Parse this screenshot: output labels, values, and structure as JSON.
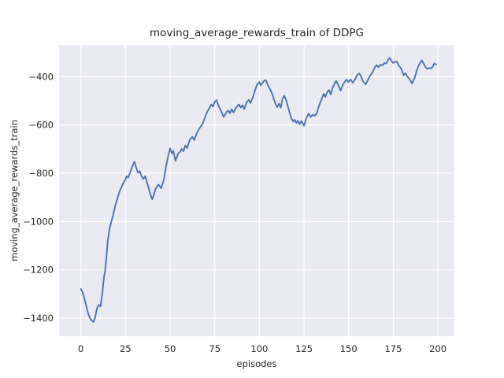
{
  "chart_data": {
    "type": "line",
    "title": "moving_average_rewards_train of DDPG",
    "xlabel": "episodes",
    "ylabel": "moving_average_rewards_train",
    "grid": true,
    "legend": "none",
    "plot_bg_color": "#eaeaf2",
    "grid_color": "#ffffff",
    "text_color": "#262626",
    "xlim": [
      -12.2,
      209.0
    ],
    "ylim": [
      -1475,
      -270
    ],
    "xticks": [
      0,
      25,
      50,
      75,
      100,
      125,
      150,
      175,
      200
    ],
    "xtick_labels": [
      "0",
      "25",
      "50",
      "75",
      "100",
      "125",
      "150",
      "175",
      "200"
    ],
    "yticks": [
      -400,
      -600,
      -800,
      -1000,
      -1200,
      -1400
    ],
    "ytick_labels": [
      "−400",
      "−600",
      "−800",
      "−1000",
      "−1200",
      "−1400"
    ],
    "series": [
      {
        "name": "moving_average_rewards_train",
        "color": "#4c72b0",
        "line_width": 1.9,
        "points": [
          [
            0,
            -1279
          ],
          [
            1,
            -1293
          ],
          [
            2,
            -1318
          ],
          [
            3,
            -1348
          ],
          [
            4,
            -1378
          ],
          [
            5,
            -1398
          ],
          [
            6,
            -1410
          ],
          [
            7,
            -1416
          ],
          [
            8,
            -1398
          ],
          [
            9,
            -1360
          ],
          [
            10,
            -1345
          ],
          [
            11,
            -1352
          ],
          [
            12,
            -1300
          ],
          [
            13,
            -1228
          ],
          [
            13.6,
            -1205
          ],
          [
            14.3,
            -1150
          ],
          [
            15,
            -1085
          ],
          [
            16,
            -1032
          ],
          [
            17,
            -1003
          ],
          [
            18,
            -976
          ],
          [
            19,
            -942
          ],
          [
            20,
            -916
          ],
          [
            21,
            -891
          ],
          [
            22,
            -870
          ],
          [
            23,
            -853
          ],
          [
            24,
            -838
          ],
          [
            25,
            -826
          ],
          [
            25.6,
            -812
          ],
          [
            26.5,
            -818
          ],
          [
            27.5,
            -799
          ],
          [
            28.5,
            -778
          ],
          [
            30,
            -752
          ],
          [
            31,
            -776
          ],
          [
            32,
            -798
          ],
          [
            33,
            -791
          ],
          [
            34,
            -812
          ],
          [
            35,
            -824
          ],
          [
            36,
            -812
          ],
          [
            37,
            -836
          ],
          [
            38,
            -862
          ],
          [
            39,
            -888
          ],
          [
            40,
            -908
          ],
          [
            41,
            -886
          ],
          [
            42,
            -862
          ],
          [
            43.5,
            -847
          ],
          [
            45,
            -862
          ],
          [
            46.5,
            -826
          ],
          [
            47.5,
            -781
          ],
          [
            48.5,
            -742
          ],
          [
            50,
            -697
          ],
          [
            51,
            -718
          ],
          [
            51.8,
            -707
          ],
          [
            53,
            -749
          ],
          [
            54.5,
            -718
          ],
          [
            55.5,
            -712
          ],
          [
            56.5,
            -699
          ],
          [
            57.5,
            -709
          ],
          [
            58.5,
            -685
          ],
          [
            59.5,
            -696
          ],
          [
            61,
            -661
          ],
          [
            62.5,
            -649
          ],
          [
            63.5,
            -663
          ],
          [
            65,
            -633
          ],
          [
            66.5,
            -613
          ],
          [
            68,
            -598
          ],
          [
            69,
            -580
          ],
          [
            70,
            -559
          ],
          [
            71,
            -543
          ],
          [
            72,
            -530
          ],
          [
            73,
            -515
          ],
          [
            74,
            -524
          ],
          [
            75,
            -504
          ],
          [
            76,
            -497
          ],
          [
            77,
            -518
          ],
          [
            78.5,
            -542
          ],
          [
            80,
            -567
          ],
          [
            81.5,
            -548
          ],
          [
            82.5,
            -540
          ],
          [
            83.5,
            -551
          ],
          [
            84.5,
            -535
          ],
          [
            85.5,
            -548
          ],
          [
            87,
            -528
          ],
          [
            88.5,
            -515
          ],
          [
            89.5,
            -528
          ],
          [
            90.5,
            -518
          ],
          [
            91.5,
            -534
          ],
          [
            93,
            -504
          ],
          [
            94,
            -496
          ],
          [
            95,
            -509
          ],
          [
            96.5,
            -482
          ],
          [
            97.5,
            -458
          ],
          [
            98.5,
            -436
          ],
          [
            100,
            -422
          ],
          [
            100.8,
            -436
          ],
          [
            101.6,
            -428
          ],
          [
            102.6,
            -417
          ],
          [
            103.6,
            -414
          ],
          [
            105,
            -439
          ],
          [
            106,
            -452
          ],
          [
            107,
            -468
          ],
          [
            108,
            -490
          ],
          [
            109,
            -512
          ],
          [
            110,
            -526
          ],
          [
            111,
            -512
          ],
          [
            112,
            -528
          ],
          [
            113,
            -490
          ],
          [
            114,
            -479
          ],
          [
            115,
            -497
          ],
          [
            116,
            -524
          ],
          [
            117,
            -551
          ],
          [
            118,
            -574
          ],
          [
            119,
            -586
          ],
          [
            119.7,
            -578
          ],
          [
            120.7,
            -592
          ],
          [
            121.5,
            -582
          ],
          [
            122.5,
            -597
          ],
          [
            123.5,
            -584
          ],
          [
            125,
            -603
          ],
          [
            126,
            -578
          ],
          [
            127,
            -560
          ],
          [
            127.7,
            -553
          ],
          [
            128.7,
            -567
          ],
          [
            130,
            -557
          ],
          [
            131,
            -562
          ],
          [
            132,
            -553
          ],
          [
            133,
            -530
          ],
          [
            134,
            -508
          ],
          [
            135,
            -491
          ],
          [
            136,
            -471
          ],
          [
            137,
            -484
          ],
          [
            138,
            -463
          ],
          [
            139,
            -455
          ],
          [
            140,
            -474
          ],
          [
            141,
            -447
          ],
          [
            142,
            -431
          ],
          [
            143,
            -417
          ],
          [
            144,
            -431
          ],
          [
            145.5,
            -458
          ],
          [
            146.6,
            -437
          ],
          [
            147.8,
            -421
          ],
          [
            148.8,
            -412
          ],
          [
            149.8,
            -423
          ],
          [
            151,
            -411
          ],
          [
            152.3,
            -425
          ],
          [
            153.5,
            -413
          ],
          [
            154.8,
            -393
          ],
          [
            156,
            -387
          ],
          [
            157,
            -399
          ],
          [
            158,
            -419
          ],
          [
            159.5,
            -432
          ],
          [
            161,
            -410
          ],
          [
            162,
            -396
          ],
          [
            163.5,
            -381
          ],
          [
            164.7,
            -360
          ],
          [
            165.7,
            -352
          ],
          [
            166.7,
            -361
          ],
          [
            168,
            -350
          ],
          [
            169,
            -353
          ],
          [
            170,
            -343
          ],
          [
            171,
            -346
          ],
          [
            172.2,
            -329
          ],
          [
            173,
            -322
          ],
          [
            174,
            -336
          ],
          [
            175,
            -343
          ],
          [
            176,
            -339
          ],
          [
            177,
            -338
          ],
          [
            178,
            -353
          ],
          [
            179.5,
            -368
          ],
          [
            180.8,
            -394
          ],
          [
            181.8,
            -386
          ],
          [
            182.6,
            -397
          ],
          [
            184,
            -408
          ],
          [
            185.5,
            -428
          ],
          [
            187,
            -405
          ],
          [
            188,
            -378
          ],
          [
            189,
            -357
          ],
          [
            190.5,
            -338
          ],
          [
            191,
            -332
          ],
          [
            192,
            -346
          ],
          [
            193,
            -360
          ],
          [
            194,
            -368
          ],
          [
            195,
            -364
          ],
          [
            196,
            -366
          ],
          [
            197,
            -360
          ],
          [
            198,
            -345
          ],
          [
            199,
            -350
          ]
        ]
      }
    ]
  }
}
